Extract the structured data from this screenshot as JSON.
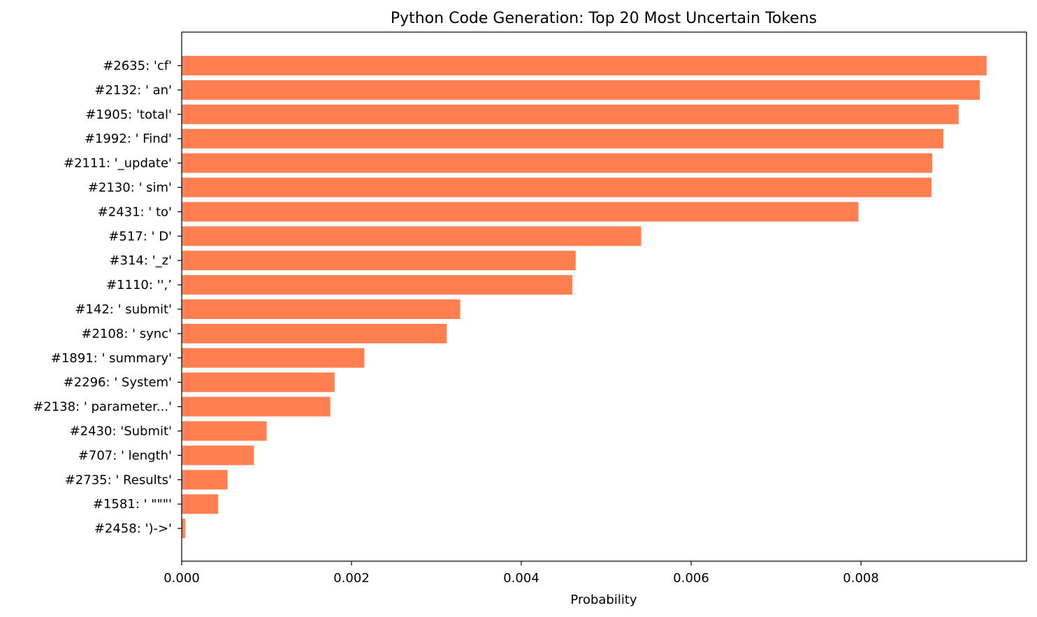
{
  "chart_data": {
    "type": "bar",
    "orientation": "horizontal",
    "title": "Python Code Generation: Top 20 Most Uncertain Tokens",
    "xlabel": "Probability",
    "ylabel": "",
    "xlim": [
      0,
      0.00995
    ],
    "xticks": [
      0.0,
      0.002,
      0.004,
      0.006,
      0.008
    ],
    "xtick_labels": [
      "0.000",
      "0.002",
      "0.004",
      "0.006",
      "0.008"
    ],
    "grid": false,
    "bar_color": "#ff7f50",
    "categories": [
      "#2635: 'cf'",
      "#2132: ' an'",
      "#1905: 'total'",
      "#1992: ' Find'",
      "#2111: '_update'",
      "#2130: ' sim'",
      "#2431: ' to'",
      "#517: ' D'",
      "#314: '_z'",
      "#1110: '',’",
      "#142: ' submit'",
      "#2108: ' sync'",
      "#1891: ' summary'",
      "#2296: ' System'",
      "#2138: ' parameter...'",
      "#2430: 'Submit'",
      "#707: ' length'",
      "#2735: ' Results'",
      "#1581: ' \"\"\"'",
      "#2458: ')->'"
    ],
    "values": [
      0.00948,
      0.0094,
      0.00915,
      0.00897,
      0.00884,
      0.00883,
      0.00797,
      0.00541,
      0.00464,
      0.0046,
      0.00328,
      0.00312,
      0.00215,
      0.0018,
      0.00175,
      0.001,
      0.00085,
      0.00054,
      0.00043,
      4e-05
    ]
  }
}
